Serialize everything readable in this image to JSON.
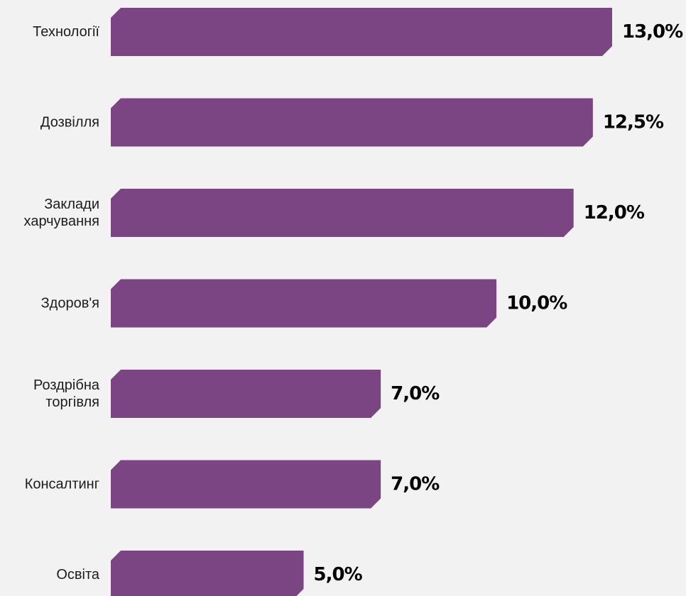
{
  "chart_data": {
    "type": "bar",
    "orientation": "horizontal",
    "categories": [
      [
        "Технології"
      ],
      [
        "Дозвілля"
      ],
      [
        "Заклади",
        "харчування"
      ],
      [
        "Здоров'я"
      ],
      [
        "Роздрібна",
        "торгівля"
      ],
      [
        "Консалтинг"
      ],
      [
        "Освіта"
      ]
    ],
    "values": [
      13.0,
      12.5,
      12.0,
      10.0,
      7.0,
      7.0,
      5.0
    ],
    "value_labels": [
      "13,0%",
      "12,5%",
      "12,0%",
      "10,0%",
      "7,0%",
      "7,0%",
      "5,0%"
    ],
    "unit": "%",
    "title": "",
    "xlabel": "",
    "ylabel": "",
    "xlim": [
      0,
      13
    ],
    "grid": false,
    "legend": "none",
    "colors": {
      "bar": "#7b4583",
      "background": "#f2f2f2",
      "value_text": "#000000",
      "category_text": "#1c1c1c"
    }
  }
}
